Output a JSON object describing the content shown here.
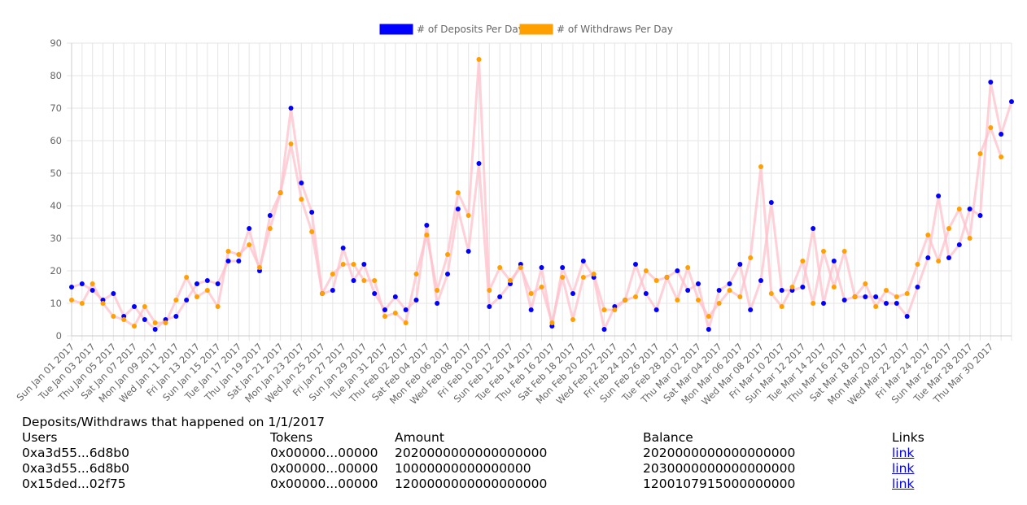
{
  "chart_data": {
    "type": "line",
    "legend_position": "top",
    "ylim": [
      0,
      90
    ],
    "y_ticks": [
      0,
      10,
      20,
      30,
      40,
      50,
      60,
      70,
      80,
      90
    ],
    "grid": true,
    "x_labels": [
      "Sun Jan 01 2017",
      "Tue Jan 03 2017",
      "Thu Jan 05 2017",
      "Sat Jan 07 2017",
      "Mon Jan 09 2017",
      "Wed Jan 11 2017",
      "Fri Jan 13 2017",
      "Sun Jan 15 2017",
      "Tue Jan 17 2017",
      "Thu Jan 19 2017",
      "Sat Jan 21 2017",
      "Mon Jan 23 2017",
      "Wed Jan 25 2017",
      "Fri Jan 27 2017",
      "Sun Jan 29 2017",
      "Tue Jan 31 2017",
      "Thu Feb 02 2017",
      "Sat Feb 04 2017",
      "Mon Feb 06 2017",
      "Wed Feb 08 2017",
      "Fri Feb 10 2017",
      "Sun Feb 12 2017",
      "Tue Feb 14 2017",
      "Thu Feb 16 2017",
      "Sat Feb 18 2017",
      "Mon Feb 20 2017",
      "Wed Feb 22 2017",
      "Fri Feb 24 2017",
      "Sun Feb 26 2017",
      "Tue Feb 28 2017",
      "Thu Mar 02 2017",
      "Sat Mar 04 2017",
      "Mon Mar 06 2017",
      "Wed Mar 08 2017",
      "Fri Mar 10 2017",
      "Sun Mar 12 2017",
      "Tue Mar 14 2017",
      "Thu Mar 16 2017",
      "Sat Mar 18 2017",
      "Mon Mar 20 2017",
      "Wed Mar 22 2017",
      "Fri Mar 24 2017",
      "Sun Mar 26 2017",
      "Tue Mar 28 2017",
      "Thu Mar 30 2017"
    ],
    "series": [
      {
        "name": "# of Deposits Per Day",
        "color": "#0000ff",
        "values": [
          15,
          16,
          14,
          11,
          13,
          6,
          9,
          5,
          2,
          5,
          6,
          11,
          16,
          17,
          16,
          23,
          23,
          33,
          20,
          37,
          44,
          70,
          47,
          38,
          13,
          14,
          27,
          17,
          22,
          13,
          8,
          12,
          8,
          11,
          34,
          10,
          19,
          39,
          26,
          53,
          9,
          12,
          16,
          22,
          8,
          21,
          3,
          21,
          13,
          23,
          18,
          2,
          9,
          11,
          22,
          13,
          8,
          18,
          20,
          14,
          16,
          2,
          14,
          16,
          22,
          8,
          17,
          41,
          14,
          14,
          15,
          33,
          10,
          23,
          11,
          12,
          12,
          12,
          10,
          10,
          6,
          15,
          24,
          43,
          24,
          28,
          39,
          37,
          78,
          62,
          72
        ]
      },
      {
        "name": "# of Withdraws Per Day",
        "color": "#ff9f00",
        "values": [
          11,
          10,
          16,
          10,
          6,
          5,
          3,
          9,
          4,
          4,
          11,
          18,
          12,
          14,
          9,
          26,
          25,
          28,
          21,
          33,
          44,
          59,
          42,
          32,
          13,
          19,
          22,
          22,
          17,
          17,
          6,
          7,
          4,
          19,
          31,
          14,
          25,
          44,
          37,
          85,
          14,
          21,
          17,
          21,
          13,
          15,
          4,
          18,
          5,
          18,
          19,
          8,
          8,
          11,
          12,
          20,
          17,
          18,
          11,
          21,
          11,
          6,
          10,
          14,
          12,
          24,
          52,
          13,
          9,
          15,
          23,
          10,
          26,
          15,
          26,
          12,
          16,
          9,
          14,
          12,
          13,
          22,
          31,
          23,
          33,
          39,
          30,
          56,
          64,
          55
        ]
      }
    ],
    "line_color": "#ffc0cb"
  },
  "table": {
    "caption": "Deposits/Withdraws that happened on 1/1/2017",
    "headers": [
      "Users",
      "Tokens",
      "Amount",
      "Balance",
      "Links"
    ],
    "rows": [
      [
        "0xa3d55...6d8b0",
        "0x00000...00000",
        "2020000000000000000",
        "2020000000000000000",
        "link"
      ],
      [
        "0xa3d55...6d8b0",
        "0x00000...00000",
        "10000000000000000",
        "2030000000000000000",
        "link"
      ],
      [
        "0x15ded...02f75",
        "0x00000...00000",
        "1200000000000000000",
        "1200107915000000000",
        "link"
      ]
    ]
  }
}
